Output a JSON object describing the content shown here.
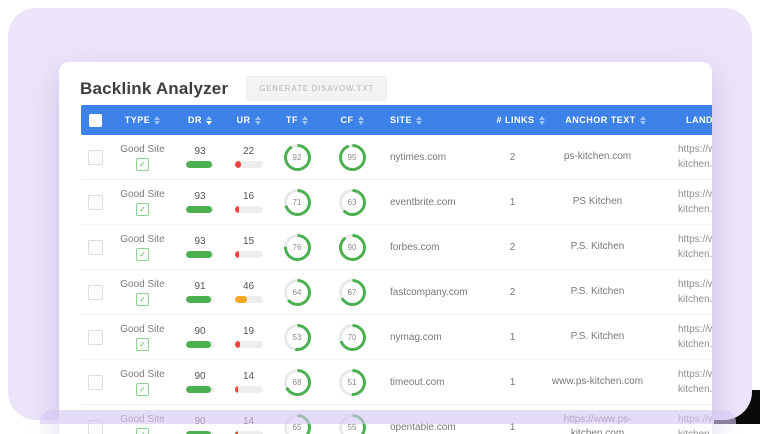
{
  "app": {
    "title": "Backlink Analyzer",
    "generate_button_label": "GENERATE DISAVOW.TXT"
  },
  "colors": {
    "background_purple": "#ece4f9",
    "header_blue": "#3d82e8",
    "green": "#4caf50",
    "orange": "#f5a623",
    "red": "#f0433d",
    "bar_track": "#ededed",
    "gauge_track": "#e9e9e9"
  },
  "table": {
    "columns": [
      {
        "key": "select",
        "label": "",
        "widthClass": "w1",
        "checkbox": true,
        "sortable": false,
        "align": "center"
      },
      {
        "key": "type",
        "label": "TYPE",
        "widthClass": "w2",
        "sortable": true,
        "align": "center"
      },
      {
        "key": "dr",
        "label": "DR",
        "widthClass": "w3",
        "sortable": true,
        "align": "center",
        "activeSort": "desc"
      },
      {
        "key": "ur",
        "label": "UR",
        "widthClass": "w4",
        "sortable": true,
        "align": "center"
      },
      {
        "key": "tf",
        "label": "TF",
        "widthClass": "w5",
        "sortable": true,
        "align": "center"
      },
      {
        "key": "cf",
        "label": "CF",
        "widthClass": "w6",
        "sortable": true,
        "align": "center"
      },
      {
        "key": "site",
        "label": "SITE",
        "widthClass": "w7",
        "sortable": true,
        "align": "left",
        "padLeft": 8
      },
      {
        "key": "links",
        "label": "# LINKS",
        "widthClass": "w8",
        "sortable": true,
        "align": "center"
      },
      {
        "key": "anchor",
        "label": "ANCHOR TEXT",
        "widthClass": "w9",
        "sortable": true,
        "align": "center"
      },
      {
        "key": "landing",
        "label": "LANDING PAGE",
        "widthClass": "w10",
        "sortable": true,
        "align": "left",
        "padLeft": 28
      }
    ],
    "rows": [
      {
        "type": "Good Site",
        "dr": 93,
        "ur": 22,
        "tf": 92,
        "cf": 95,
        "site": "nytimes.com",
        "links": 2,
        "anchor": "ps-kitchen.com",
        "landing": "https://www.ps-kitchen.com"
      },
      {
        "type": "Good Site",
        "dr": 93,
        "ur": 16,
        "tf": 71,
        "cf": 63,
        "site": "eventbrite.com",
        "links": 1,
        "anchor": "PS Kitchen",
        "landing": "https://www.ps-kitchen.com"
      },
      {
        "type": "Good Site",
        "dr": 93,
        "ur": 15,
        "tf": 76,
        "cf": 90,
        "site": "forbes.com",
        "links": 2,
        "anchor": "P.S. Kitchen",
        "landing": "https://www.ps-kitchen.com"
      },
      {
        "type": "Good Site",
        "dr": 91,
        "ur": 46,
        "tf": 64,
        "cf": 67,
        "site": "fastcompany.com",
        "links": 2,
        "anchor": "P.S. Kitchen",
        "landing": "https://www.ps-kitchen.com"
      },
      {
        "type": "Good Site",
        "dr": 90,
        "ur": 19,
        "tf": 53,
        "cf": 70,
        "site": "nymag.com",
        "links": 1,
        "anchor": "P.S. Kitchen",
        "landing": "https://www.ps-kitchen.com"
      },
      {
        "type": "Good Site",
        "dr": 90,
        "ur": 14,
        "tf": 68,
        "cf": 51,
        "site": "timeout.com",
        "links": 1,
        "anchor": "www.ps-kitchen.com",
        "landing": "https://www.ps-kitchen.com"
      },
      {
        "type": "Good Site",
        "dr": 90,
        "ur": 14,
        "tf": 65,
        "cf": 55,
        "site": "opentable.com",
        "links": 1,
        "anchor": "https://www.ps-kitchen.com",
        "landing": "https://www.ps-kitchen.com"
      }
    ]
  }
}
